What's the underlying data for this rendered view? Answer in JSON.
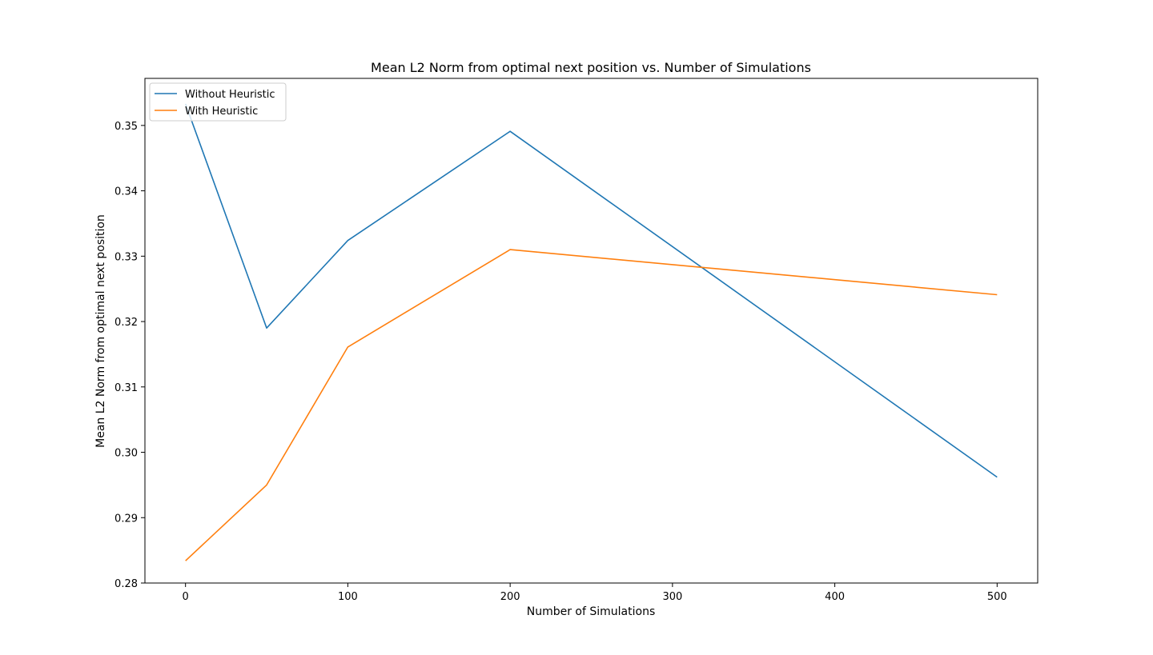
{
  "chart_data": {
    "type": "line",
    "title": "Mean L2 Norm from optimal next position vs. Number of Simulations",
    "xlabel": "Number of Simulations",
    "ylabel": "Mean L2 Norm from optimal next position",
    "x": [
      0,
      50,
      100,
      200,
      500
    ],
    "xlim": [
      -25,
      525
    ],
    "ylim": [
      0.28,
      0.3572
    ],
    "xticks": [
      0,
      100,
      200,
      300,
      400,
      500
    ],
    "yticks": [
      0.28,
      0.29,
      0.3,
      0.31,
      0.32,
      0.33,
      0.34,
      0.35
    ],
    "xtick_labels": [
      "0",
      "100",
      "200",
      "300",
      "400",
      "500"
    ],
    "ytick_labels": [
      "0.28",
      "0.29",
      "0.30",
      "0.31",
      "0.32",
      "0.33",
      "0.34",
      "0.35"
    ],
    "grid": false,
    "legend_position": "top-left",
    "series": [
      {
        "name": "Without Heuristic",
        "color": "#1f77b4",
        "values": [
          0.3533,
          0.319,
          0.3324,
          0.3491,
          0.2962
        ]
      },
      {
        "name": "With Heuristic",
        "color": "#ff7f0e",
        "values": [
          0.2834,
          0.295,
          0.3161,
          0.331,
          0.3241
        ]
      }
    ]
  }
}
